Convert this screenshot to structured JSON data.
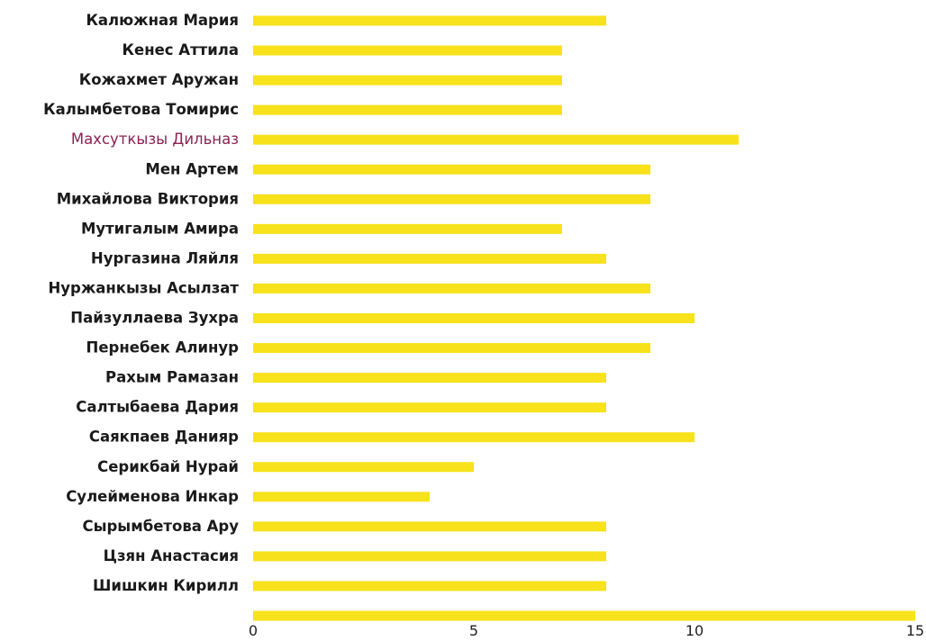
{
  "chart_data": {
    "type": "bar",
    "orientation": "horizontal",
    "title": "",
    "xlabel": "",
    "ylabel": "",
    "xlim": [
      0,
      15
    ],
    "x_ticks": [
      "0",
      "5",
      "10",
      "15"
    ],
    "grid": false,
    "legend": "none",
    "bar_color": "#F7E21B",
    "label_color": "#1a1a1a",
    "highlight_color": "#8B2252",
    "highlighted_category": "Махсуткызы Дильназ",
    "categories": [
      "Калюжная Мария",
      "Кенес Аттила",
      "Кожахмет Аружан",
      "Калымбетова Томирис",
      "Махсуткызы Дильназ",
      "Мен Артем",
      "Михайлова Виктория",
      "Мутигалым Амира",
      "Нургазина Ляйля",
      "Нуржанкызы Асылзат",
      "Пайзуллаева Зухра",
      "Пернебек Алинур",
      "Рахым Рамазан",
      "Салтыбаева Дария",
      "Саякпаев Данияр",
      "Серикбай Нурай",
      "Сулейменова Инкар",
      "Сырымбетова Ару",
      "Цзян Анастасия",
      "Шишкин Кирилл",
      ""
    ],
    "values": [
      8,
      7,
      7,
      7,
      11,
      9,
      9,
      7,
      8,
      9,
      10,
      9,
      8,
      8,
      10,
      5,
      4,
      8,
      8,
      8,
      15
    ]
  }
}
